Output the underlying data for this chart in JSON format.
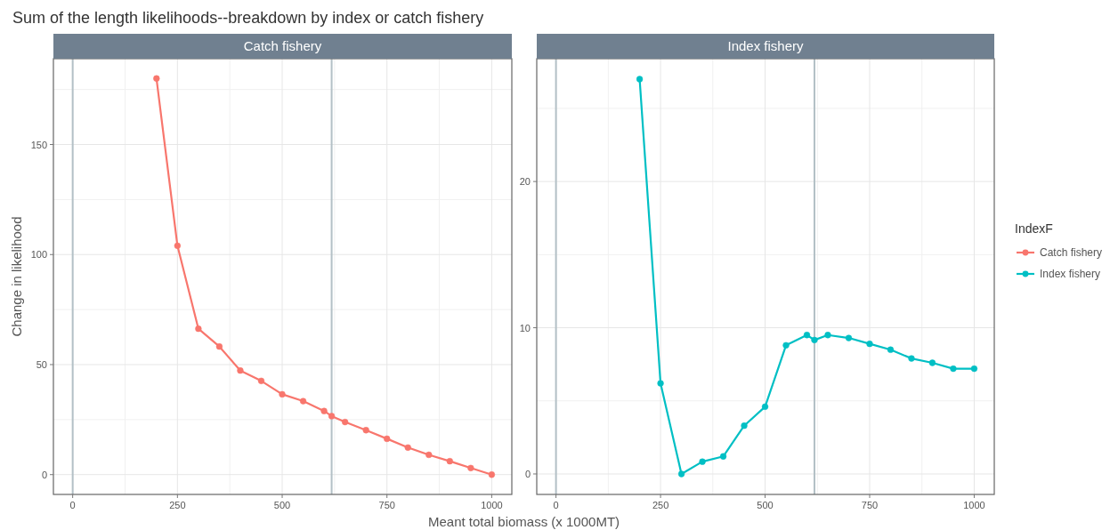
{
  "chart_data": [
    {
      "type": "line",
      "title": "Sum of the length likelihoods--breakdown by index or catch fishery",
      "subtitle": "Catch fishery",
      "xlabel": "Meant total biomass (x 1000MT)",
      "ylabel": "Change in likelihood",
      "legend_title": "IndexF",
      "grid": true,
      "marker": "circle",
      "xlim": [
        -46,
        1048
      ],
      "xticks": [
        0,
        250,
        500,
        750,
        1000
      ],
      "ylim": [
        -9,
        189
      ],
      "yticks": [
        0,
        50,
        100,
        150
      ],
      "ref_lines": [
        {
          "axis": "x",
          "value": 0,
          "color": "#b3c0c6"
        },
        {
          "axis": "x",
          "value": 618,
          "color": "#b3c0c6"
        }
      ],
      "series": [
        {
          "name": "Catch fishery",
          "color": "#f8766d",
          "x": [
            200,
            250,
            300,
            350,
            400,
            450,
            500,
            550,
            600,
            618,
            650,
            700,
            750,
            800,
            850,
            900,
            950,
            1000
          ],
          "values": [
            180,
            104,
            66.3,
            58.2,
            47.3,
            42.6,
            36.5,
            33.4,
            28.9,
            26.6,
            23.9,
            20.2,
            16.3,
            12.3,
            9,
            6.1,
            3,
            0
          ]
        }
      ]
    },
    {
      "type": "line",
      "subtitle": "Index fishery",
      "legend": "right",
      "grid": true,
      "marker": "circle",
      "xlim": [
        -46,
        1048
      ],
      "xticks": [
        0,
        250,
        500,
        750,
        1000
      ],
      "ylim": [
        -1.4,
        28.4
      ],
      "yticks": [
        0,
        10,
        20
      ],
      "ref_lines": [
        {
          "axis": "x",
          "value": 0,
          "color": "#b3c0c6"
        },
        {
          "axis": "x",
          "value": 618,
          "color": "#b3c0c6"
        }
      ],
      "series": [
        {
          "name": "Index fishery",
          "color": "#00bfc4",
          "x": [
            200,
            250,
            300,
            350,
            400,
            450,
            500,
            550,
            600,
            618,
            650,
            700,
            750,
            800,
            850,
            900,
            950,
            1000
          ],
          "values": [
            27,
            6.2,
            0,
            0.84,
            1.2,
            3.3,
            4.6,
            8.8,
            9.5,
            9.16,
            9.5,
            9.3,
            8.9,
            8.5,
            7.9,
            7.6,
            7.2,
            7.2
          ]
        }
      ]
    }
  ]
}
